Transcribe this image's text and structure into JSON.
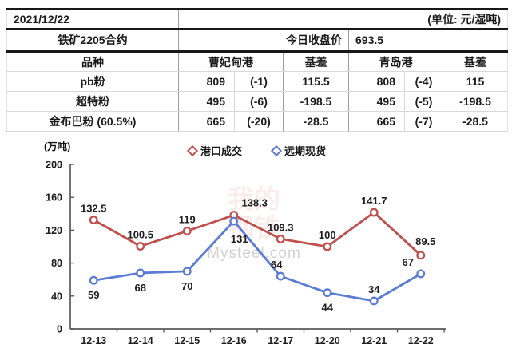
{
  "header": {
    "date": "2021/12/22",
    "unit_note": "(单位: 元/湿吨)",
    "contract": "铁矿2205合约",
    "close_label": "今日收盘价",
    "close_value": "693.5"
  },
  "table": {
    "columns": [
      "品种",
      "曹妃甸港",
      "基差",
      "青岛港",
      "基差"
    ],
    "rows": [
      {
        "name": "pb粉",
        "cfd_price": "809",
        "cfd_chg": "(-1)",
        "cfd_basis": "115.5",
        "qd_price": "808",
        "qd_chg": "(-4)",
        "qd_basis": "115"
      },
      {
        "name": "超特粉",
        "cfd_price": "495",
        "cfd_chg": "(-6)",
        "cfd_basis": "-198.5",
        "qd_price": "495",
        "qd_chg": "(-5)",
        "qd_basis": "-198.5"
      },
      {
        "name": "金布巴粉 (60.5%)",
        "cfd_price": "665",
        "cfd_chg": "(-20)",
        "cfd_basis": "-28.5",
        "qd_price": "665",
        "qd_chg": "(-7)",
        "qd_basis": "-28.5"
      }
    ]
  },
  "chart_data": {
    "type": "line",
    "title": "",
    "unit_label": "(万吨)",
    "xlabel": "",
    "ylabel": "(万吨)",
    "categories": [
      "12-13",
      "12-14",
      "12-15",
      "12-16",
      "12-17",
      "12-20",
      "12-21",
      "12-22"
    ],
    "series": [
      {
        "name": "港口成交",
        "color": "#c0504d",
        "values": [
          132.5,
          100.5,
          119,
          138.3,
          109.3,
          100,
          141.7,
          89.5
        ]
      },
      {
        "name": "远期现货",
        "color": "#5b7cd5",
        "values": [
          59,
          68,
          70,
          131,
          64,
          44,
          34,
          67
        ]
      }
    ],
    "ylim": [
      0,
      200
    ],
    "yticks": [
      0,
      40,
      80,
      120,
      160,
      200
    ],
    "legend_position": "top",
    "grid": false
  },
  "watermark": {
    "cn": "我的钢铁",
    "en": "Mysteel.com"
  }
}
